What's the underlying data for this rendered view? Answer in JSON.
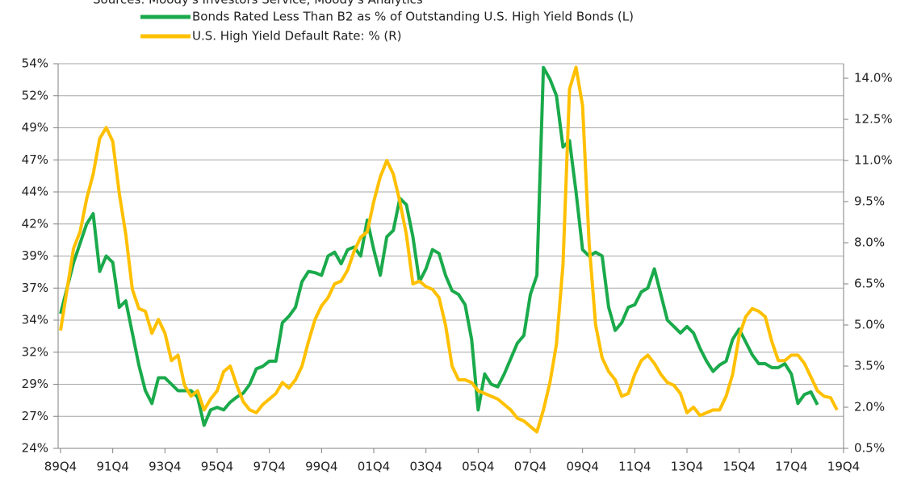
{
  "chart_data": {
    "type": "line",
    "source": "Sources: Moody's Investors Service, Moody's Analytics",
    "categories": [
      "89Q4",
      null,
      null,
      null,
      null,
      null,
      null,
      null,
      "91Q4",
      null,
      null,
      null,
      null,
      null,
      null,
      null,
      "93Q4",
      null,
      null,
      null,
      null,
      null,
      null,
      null,
      "95Q4",
      null,
      null,
      null,
      null,
      null,
      null,
      null,
      "97Q4",
      null,
      null,
      null,
      null,
      null,
      null,
      null,
      "99Q4",
      null,
      null,
      null,
      null,
      null,
      null,
      null,
      "01Q4",
      null,
      null,
      null,
      null,
      null,
      null,
      null,
      "03Q4",
      null,
      null,
      null,
      null,
      null,
      null,
      null,
      "05Q4",
      null,
      null,
      null,
      null,
      null,
      null,
      null,
      "07Q4",
      null,
      null,
      null,
      null,
      null,
      null,
      null,
      "09Q4",
      null,
      null,
      null,
      null,
      null,
      null,
      null,
      "11Q4",
      null,
      null,
      null,
      null,
      null,
      null,
      null,
      "13Q4",
      null,
      null,
      null,
      null,
      null,
      null,
      null,
      "15Q4",
      null,
      null,
      null,
      null,
      null,
      null,
      null,
      "17Q4",
      null,
      null,
      null,
      null,
      null,
      null,
      null,
      "19Q4"
    ],
    "series": [
      {
        "name": "Bonds Rated Less Than B2 as % of Outstanding U.S. High Yield Bonds (L)",
        "color": "#1aaa4b",
        "axis": "y",
        "values": [
          34.5,
          36.5,
          38.5,
          40,
          41.5,
          42.3,
          37.8,
          39,
          38.5,
          35,
          35.5,
          33,
          30.5,
          28.5,
          27.5,
          29.5,
          29.5,
          29,
          28.5,
          28.5,
          28.5,
          28,
          25.8,
          27,
          27.2,
          27,
          27.6,
          28,
          28.3,
          29,
          30.2,
          30.4,
          30.8,
          30.8,
          33.8,
          34.3,
          35,
          37,
          37.8,
          37.7,
          37.5,
          39,
          39.3,
          38.4,
          39.5,
          39.7,
          39,
          41.8,
          39.5,
          37.5,
          40.5,
          41,
          43.5,
          43,
          40.5,
          37,
          38,
          39.5,
          39.2,
          37.5,
          36.3,
          36,
          35.2,
          32.5,
          27,
          29.8,
          29,
          28.8,
          29.8,
          31,
          32.2,
          32.8,
          36,
          37.5,
          53.7,
          52.8,
          51.5,
          47.5,
          48,
          44,
          39.5,
          39,
          39.3,
          39,
          35,
          33.2,
          33.8,
          35,
          35.2,
          36.2,
          36.5,
          38,
          36,
          34,
          33.5,
          33,
          33.5,
          33,
          31.8,
          30.8,
          30,
          30.5,
          30.8,
          32.5,
          33.3,
          32.3,
          31.3,
          30.6,
          30.6,
          30.3,
          30.3,
          30.6,
          29.8,
          27.5,
          28.2,
          28.4,
          27.4,
          null,
          null,
          null,
          null
        ]
      },
      {
        "name": "U.S. High Yield Default Rate: % (R)",
        "color": "#ffc000",
        "axis": "y2",
        "values": [
          4.8,
          6.3,
          7.8,
          8.4,
          9.6,
          10.5,
          11.8,
          12.2,
          11.7,
          9.8,
          8.3,
          6.3,
          5.6,
          5.5,
          4.7,
          5.2,
          4.7,
          3.7,
          3.9,
          2.8,
          2.4,
          2.6,
          1.9,
          2.3,
          2.6,
          3.3,
          3.5,
          2.8,
          2.2,
          1.9,
          1.8,
          2.1,
          2.3,
          2.5,
          2.9,
          2.7,
          3.0,
          3.5,
          4.4,
          5.2,
          5.7,
          6.0,
          6.5,
          6.6,
          7.0,
          7.7,
          8.2,
          8.4,
          9.5,
          10.4,
          11.0,
          10.5,
          9.5,
          8.3,
          6.5,
          6.6,
          6.4,
          6.3,
          6.0,
          5.0,
          3.5,
          3.0,
          3.0,
          2.9,
          2.6,
          2.5,
          2.4,
          2.3,
          2.1,
          1.9,
          1.6,
          1.5,
          1.3,
          1.1,
          1.9,
          2.9,
          4.3,
          7.2,
          13.6,
          14.4,
          13.0,
          8.0,
          5.0,
          3.8,
          3.3,
          3.0,
          2.4,
          2.5,
          3.2,
          3.7,
          3.9,
          3.6,
          3.2,
          2.9,
          2.8,
          2.5,
          1.8,
          2.0,
          1.7,
          1.8,
          1.9,
          1.9,
          2.4,
          3.2,
          4.6,
          5.3,
          5.6,
          5.5,
          5.3,
          4.4,
          3.7,
          3.7,
          3.9,
          3.9,
          3.6,
          3.1,
          2.6,
          2.4,
          2.35,
          1.9,
          null
        ]
      }
    ],
    "ylim": [
      24,
      54
    ],
    "yticks": [
      {
        "value": 24,
        "label": "24%"
      },
      {
        "value": 26.5,
        "label": "27%"
      },
      {
        "value": 29,
        "label": "29%"
      },
      {
        "value": 31.5,
        "label": "32%"
      },
      {
        "value": 34,
        "label": "34%"
      },
      {
        "value": 36.5,
        "label": "37%"
      },
      {
        "value": 39,
        "label": "39%"
      },
      {
        "value": 41.5,
        "label": "42%"
      },
      {
        "value": 44,
        "label": "44%"
      },
      {
        "value": 46.5,
        "label": "47%"
      },
      {
        "value": 49,
        "label": "49%"
      },
      {
        "value": 51.5,
        "label": "52%"
      },
      {
        "value": 54,
        "label": "54%"
      }
    ],
    "y2lim": [
      0.5,
      14.53
    ],
    "y2ticks": [
      {
        "value": 0.5,
        "label": "0.5%"
      },
      {
        "value": 2,
        "label": "2.0%"
      },
      {
        "value": 3.5,
        "label": "3.5%"
      },
      {
        "value": 5,
        "label": "5.0%"
      },
      {
        "value": 6.5,
        "label": "6.5%"
      },
      {
        "value": 8,
        "label": "8.0%"
      },
      {
        "value": 9.5,
        "label": "9.5%"
      },
      {
        "value": 11,
        "label": "11.0%"
      },
      {
        "value": 12.5,
        "label": "12.5%"
      },
      {
        "value": 14,
        "label": "14.0%"
      }
    ],
    "grid": true
  }
}
